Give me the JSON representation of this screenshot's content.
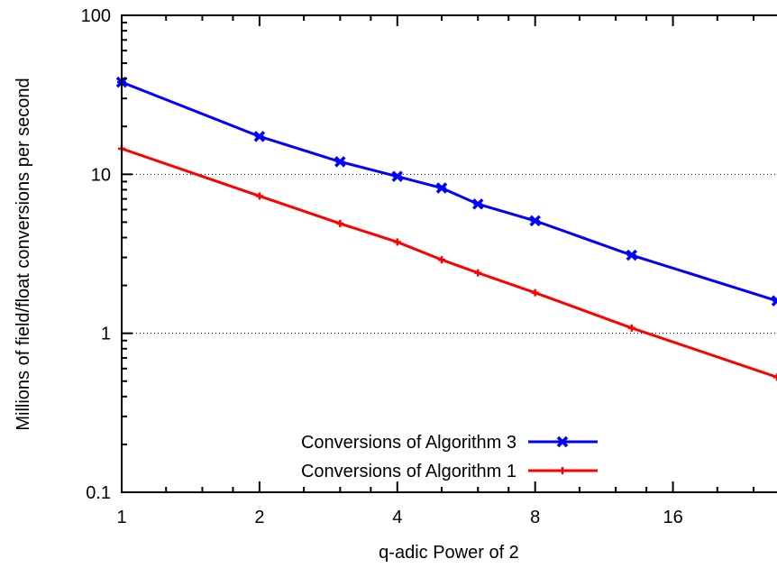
{
  "chart_data": {
    "type": "line",
    "title": "",
    "xlabel": "q-adic Power of 2",
    "ylabel": "Millions of field/float conversions per second",
    "x_scale": "log2",
    "y_scale": "log10",
    "xlim": [
      1,
      27
    ],
    "ylim": [
      0.1,
      100
    ],
    "x_ticks": [
      1,
      2,
      4,
      8,
      16
    ],
    "x_tick_labels": [
      "1",
      "2",
      "4",
      "8",
      "16"
    ],
    "y_ticks": [
      0.1,
      1,
      10,
      100
    ],
    "y_tick_labels": [
      "0.1",
      "1",
      "10",
      "100"
    ],
    "grid": "horizontal dotted at 1 and 10",
    "legend_position": "bottom-center",
    "series": [
      {
        "name": "Conversions of Algorithm 3",
        "color": "#0000ff",
        "marker": "x-cross",
        "x": [
          1,
          2,
          3,
          4,
          5,
          6,
          8,
          13,
          27
        ],
        "y": [
          38,
          17.3,
          12,
          9.7,
          8.2,
          6.5,
          5.1,
          3.1,
          1.6
        ]
      },
      {
        "name": "Conversions of Algorithm 1",
        "color": "#ff0000",
        "marker": "plus",
        "x": [
          1,
          2,
          3,
          4,
          5,
          6,
          8,
          13,
          27
        ],
        "y": [
          14.5,
          7.3,
          4.9,
          3.75,
          2.9,
          2.4,
          1.8,
          1.08,
          0.53
        ]
      }
    ]
  }
}
